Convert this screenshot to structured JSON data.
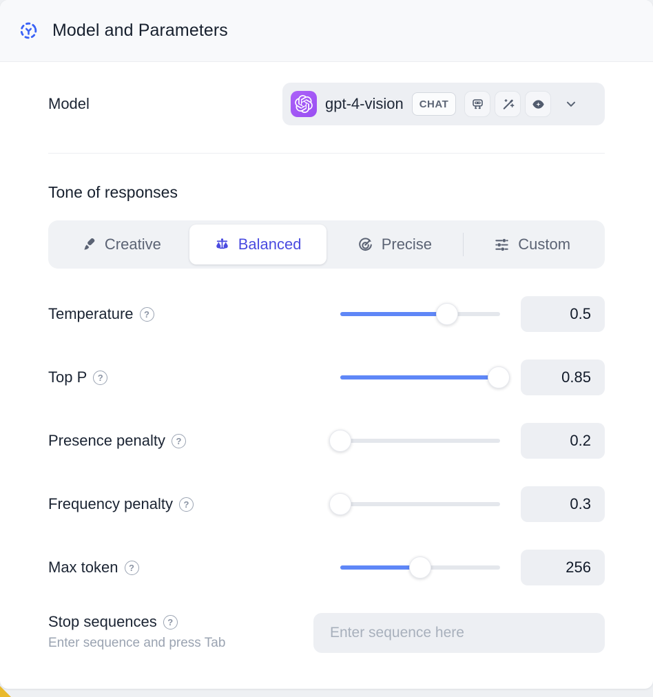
{
  "header": {
    "title": "Model and Parameters"
  },
  "model_row": {
    "label": "Model",
    "selected_model": "gpt-4-vision",
    "mode_badge": "CHAT",
    "capability_icons": [
      "robot",
      "wand-sparkles",
      "vision-eye"
    ]
  },
  "tone": {
    "heading": "Tone of responses",
    "selected": "Balanced",
    "options": [
      {
        "label": "Creative",
        "icon": "paintbrush-icon"
      },
      {
        "label": "Balanced",
        "icon": "scale-icon"
      },
      {
        "label": "Precise",
        "icon": "target-icon"
      },
      {
        "label": "Custom",
        "icon": "sliders-icon"
      }
    ]
  },
  "parameters": [
    {
      "label": "Temperature",
      "value": "0.5",
      "fill_pct": 67
    },
    {
      "label": "Top P",
      "value": "0.85",
      "fill_pct": 99
    },
    {
      "label": "Presence penalty",
      "value": "0.2",
      "fill_pct": 0
    },
    {
      "label": "Frequency penalty",
      "value": "0.3",
      "fill_pct": 0
    },
    {
      "label": "Max token",
      "value": "256",
      "fill_pct": 50
    }
  ],
  "stop_sequences": {
    "label": "Stop sequences",
    "hint": "Enter sequence and press Tab",
    "placeholder": "Enter sequence here"
  },
  "ui": {
    "help_glyph": "?"
  },
  "colors": {
    "accent_blue": "#5f87f7",
    "selected_tone_blue": "#4a4be0",
    "logo_purple": "#a259f6",
    "track_gray": "#e4e7ec",
    "header_bg": "#f8f9fb",
    "field_bg": "#edeff3",
    "corner_accent": "#e9b92c"
  }
}
